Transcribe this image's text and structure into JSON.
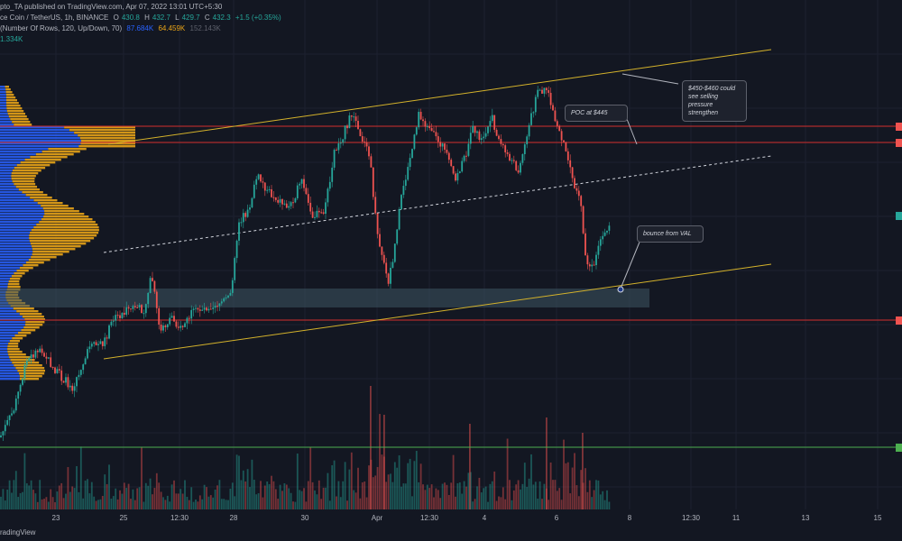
{
  "header": {
    "line1": "pto_TA published on TradingView.com, Apr 07, 2022 13:01 UTC+5:30",
    "line2_prefix": "ce Coin / TetherUS, 1h, BINANCE",
    "ohlc": [
      {
        "label": "O",
        "value": "430.8"
      },
      {
        "label": "H",
        "value": "432.7"
      },
      {
        "label": "L",
        "value": "429.7"
      },
      {
        "label": "C",
        "value": "432.3"
      }
    ],
    "change": "+1.5 (+0.35%)",
    "line3_prefix": "(Number Of Rows, 120, Up/Down, 70)",
    "vp_values": [
      "87.684K",
      "64.459K",
      "152.143K"
    ],
    "line4": "1.334K"
  },
  "annotations": {
    "sell_note": "$450-$460 could see selling pressure strengthen",
    "poc_note": "POC at $445",
    "bounce_note": "bounce from VAL"
  },
  "xaxis": {
    "ticks": [
      "23",
      "25",
      "12:30",
      "28",
      "30",
      "Apr",
      "12:30",
      "4",
      "6",
      "8",
      "12:30",
      "11",
      "13",
      "15"
    ]
  },
  "footer": {
    "text": "radingView"
  },
  "colors": {
    "background": "#131722",
    "candle_up": "#26a69a",
    "candle_down": "#ef5350",
    "channel": "#d4b22b",
    "level_line": "#d32f2f",
    "support_line": "#4caf50",
    "vp_up": "#2962ff",
    "vp_down": "#e8a317",
    "zone": "#3e5563"
  },
  "price_markers": [
    {
      "color": "#ef5350"
    },
    {
      "color": "#ef5350"
    },
    {
      "color": "#26a69a"
    },
    {
      "color": "#ef5350"
    },
    {
      "color": "#4caf50"
    }
  ]
}
